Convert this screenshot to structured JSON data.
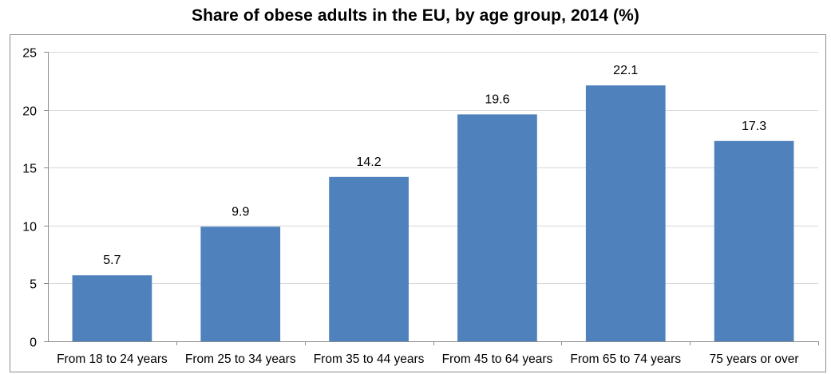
{
  "chart_data": {
    "type": "bar",
    "title": "Share of obese adults in the EU, by age group, 2014 (%)",
    "xlabel": "",
    "ylabel": "",
    "categories": [
      "From 18 to 24 years",
      "From 25 to 34 years",
      "From 35 to 44 years",
      "From 45 to 64 years",
      "From 65 to 74 years",
      "75 years or over"
    ],
    "values": [
      5.7,
      9.9,
      14.2,
      19.6,
      22.1,
      17.3
    ],
    "data_labels": [
      "5.7",
      "9.9",
      "14.2",
      "19.6",
      "22.1",
      "17.3"
    ],
    "ylim": [
      0,
      25
    ],
    "yticks": [
      0,
      5,
      10,
      15,
      20,
      25
    ],
    "grid": true,
    "legend": "none",
    "colors": {
      "bar": "#4F81BD",
      "grid": "#d9d9d9",
      "frame": "#8c8c8c"
    }
  }
}
